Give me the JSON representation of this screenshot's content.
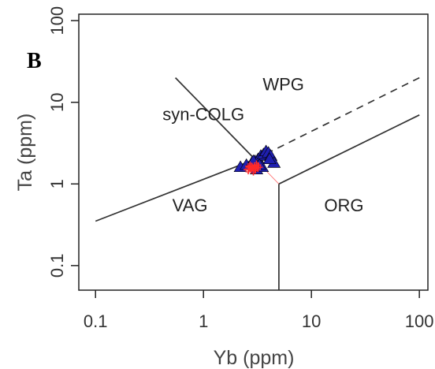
{
  "panel_letter": "B",
  "chart_data": {
    "type": "scatter",
    "xlabel": "Yb (ppm)",
    "ylabel": "Ta (ppm)",
    "x_scale": "log",
    "y_scale": "log",
    "xlim": [
      0.07,
      120
    ],
    "ylim": [
      0.05,
      120
    ],
    "x_ticks": [
      0.1,
      1,
      10,
      100
    ],
    "x_tick_labels": [
      "0.1",
      "1",
      "10",
      "100"
    ],
    "y_ticks": [
      0.1,
      1,
      10,
      100
    ],
    "y_tick_labels": [
      "0.1",
      "1",
      "10",
      "100"
    ],
    "grid": false,
    "legend": "none",
    "region_labels": [
      {
        "text": "WPG",
        "x": 5.5,
        "y": 14
      },
      {
        "text": "syn-COLG",
        "x": 1.0,
        "y": 6
      },
      {
        "text": "VAG",
        "x": 0.75,
        "y": 0.46
      },
      {
        "text": "ORG",
        "x": 20,
        "y": 0.46
      }
    ],
    "boundaries": [
      {
        "style": "solid",
        "points": [
          [
            0.55,
            20
          ],
          [
            3,
            2
          ]
        ]
      },
      {
        "style": "solid",
        "points": [
          [
            0.1,
            0.35
          ],
          [
            3,
            2
          ]
        ]
      },
      {
        "style": "dashed",
        "points": [
          [
            3,
            2
          ],
          [
            100,
            20
          ]
        ]
      },
      {
        "style": "solid",
        "points": [
          [
            5,
            1
          ],
          [
            100,
            7
          ]
        ]
      },
      {
        "style": "solid",
        "points": [
          [
            5,
            1
          ],
          [
            5,
            0.05
          ]
        ]
      },
      {
        "style": "thin-red",
        "points": [
          [
            3,
            2
          ],
          [
            5,
            1
          ]
        ]
      }
    ],
    "series": [
      {
        "marker": "triangle",
        "color": "#1f1fb0",
        "x": [
          2.2,
          2.5,
          2.8,
          3.0,
          3.2,
          3.4,
          3.6,
          3.8,
          4.0,
          4.2,
          4.5,
          3.1,
          3.5,
          4.1,
          3.3,
          2.9
        ],
        "y": [
          1.6,
          1.7,
          1.8,
          1.9,
          2.0,
          2.2,
          2.3,
          2.5,
          2.4,
          2.2,
          1.8,
          1.5,
          1.6,
          2.0,
          1.7,
          1.9
        ]
      },
      {
        "marker": "cross",
        "color": "#ff2a2a",
        "x": [
          2.6,
          2.8,
          3.0,
          3.1,
          2.9,
          3.2,
          2.7
        ],
        "y": [
          1.5,
          1.6,
          1.55,
          1.7,
          1.45,
          1.6,
          1.65
        ]
      }
    ]
  }
}
